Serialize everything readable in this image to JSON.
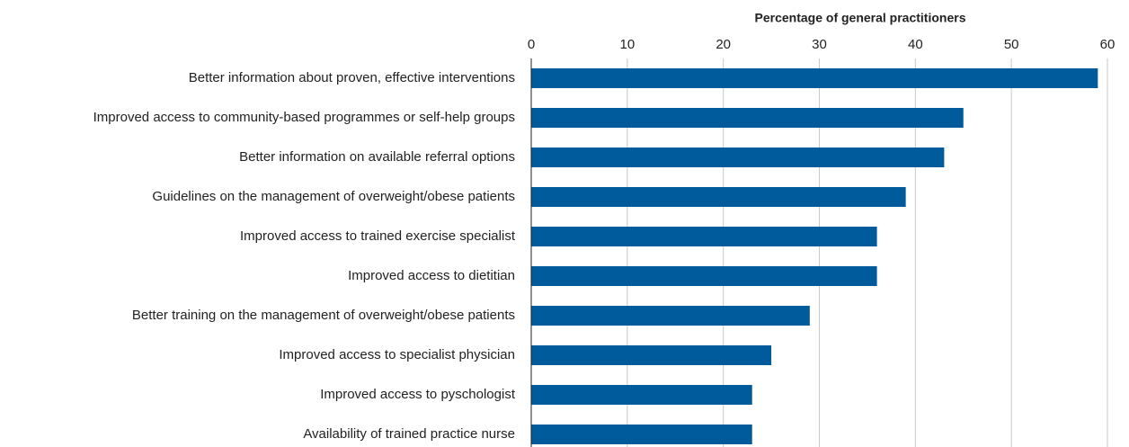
{
  "chart_data": {
    "type": "hbar",
    "x_label": "Percentage of general practitioners",
    "categories": [
      "Better information about proven, effective interventions",
      "Improved access to community-based programmes or self-help groups",
      "Better information on available referral options",
      "Guidelines on the management of overweight/obese patients",
      "Improved access to trained exercise specialist",
      "Improved access to dietitian",
      "Better training on the management of overweight/obese patients",
      "Improved access to specialist physician",
      "Improved access to pyschologist",
      "Availability of trained practice nurse"
    ],
    "values": [
      59,
      45,
      43,
      39,
      36,
      36,
      29,
      25,
      23,
      23
    ],
    "color": "#005b9c",
    "xlim": [
      0,
      60
    ],
    "xticks": [
      0,
      10,
      20,
      30,
      40,
      50,
      60
    ],
    "grid": true
  }
}
